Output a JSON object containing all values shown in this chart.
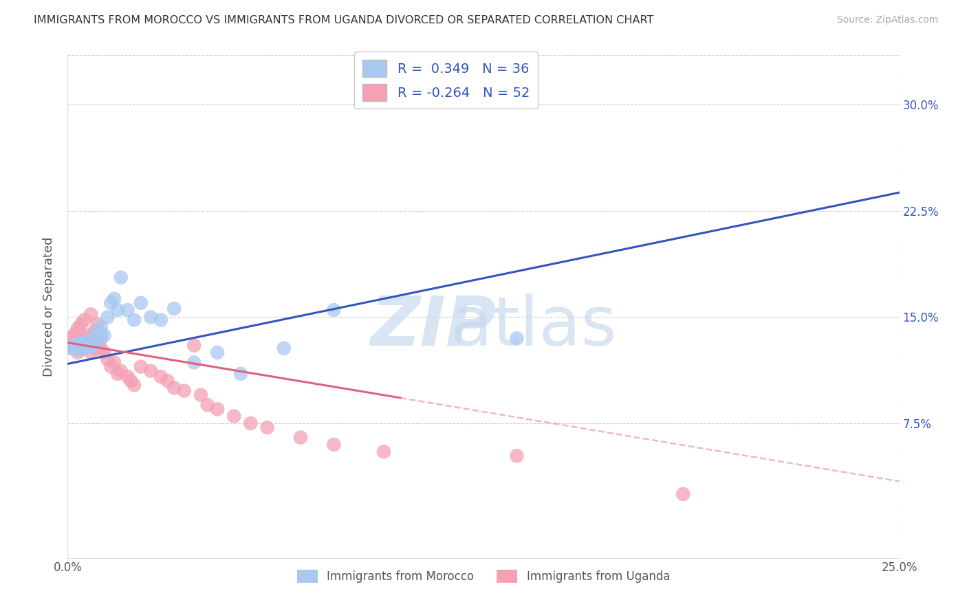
{
  "title": "IMMIGRANTS FROM MOROCCO VS IMMIGRANTS FROM UGANDA DIVORCED OR SEPARATED CORRELATION CHART",
  "source": "Source: ZipAtlas.com",
  "ylabel": "Divorced or Separated",
  "y_ticks": [
    0.075,
    0.15,
    0.225,
    0.3
  ],
  "y_tick_labels": [
    "7.5%",
    "15.0%",
    "22.5%",
    "30.0%"
  ],
  "xlim": [
    0.0,
    0.25
  ],
  "ylim": [
    -0.02,
    0.335
  ],
  "morocco_R": 0.349,
  "morocco_N": 36,
  "uganda_R": -0.264,
  "uganda_N": 52,
  "morocco_color": "#a8c8f0",
  "uganda_color": "#f4a0b5",
  "morocco_line_color": "#3355bb",
  "uganda_line_color": "#e06080",
  "legend_morocco": "Immigrants from Morocco",
  "legend_uganda": "Immigrants from Uganda",
  "morocco_line_x0": 0.0,
  "morocco_line_y0": 0.117,
  "morocco_line_x1": 0.25,
  "morocco_line_y1": 0.238,
  "uganda_line_x0": 0.0,
  "uganda_line_y0": 0.132,
  "uganda_line_x1_solid": 0.1,
  "uganda_line_y1_solid": 0.093,
  "uganda_line_x1_dash": 0.25,
  "uganda_line_y1_dash": 0.034,
  "morocco_scatter_x": [
    0.001,
    0.002,
    0.003,
    0.003,
    0.004,
    0.004,
    0.005,
    0.005,
    0.006,
    0.006,
    0.007,
    0.007,
    0.008,
    0.008,
    0.009,
    0.009,
    0.01,
    0.01,
    0.011,
    0.012,
    0.013,
    0.014,
    0.015,
    0.016,
    0.018,
    0.02,
    0.022,
    0.025,
    0.028,
    0.032,
    0.038,
    0.045,
    0.052,
    0.065,
    0.08,
    0.135
  ],
  "morocco_scatter_y": [
    0.128,
    0.13,
    0.127,
    0.131,
    0.129,
    0.132,
    0.128,
    0.131,
    0.13,
    0.133,
    0.132,
    0.129,
    0.135,
    0.131,
    0.14,
    0.134,
    0.138,
    0.143,
    0.137,
    0.15,
    0.16,
    0.163,
    0.155,
    0.178,
    0.155,
    0.148,
    0.16,
    0.15,
    0.148,
    0.156,
    0.118,
    0.125,
    0.11,
    0.128,
    0.155,
    0.135
  ],
  "uganda_scatter_x": [
    0.001,
    0.001,
    0.002,
    0.002,
    0.002,
    0.003,
    0.003,
    0.003,
    0.004,
    0.004,
    0.004,
    0.005,
    0.005,
    0.005,
    0.006,
    0.006,
    0.007,
    0.007,
    0.007,
    0.008,
    0.008,
    0.009,
    0.009,
    0.01,
    0.01,
    0.011,
    0.012,
    0.013,
    0.014,
    0.015,
    0.016,
    0.018,
    0.019,
    0.02,
    0.022,
    0.025,
    0.028,
    0.03,
    0.032,
    0.035,
    0.038,
    0.04,
    0.042,
    0.045,
    0.05,
    0.055,
    0.06,
    0.07,
    0.08,
    0.095,
    0.135,
    0.185
  ],
  "uganda_scatter_y": [
    0.13,
    0.135,
    0.128,
    0.132,
    0.138,
    0.125,
    0.13,
    0.142,
    0.127,
    0.133,
    0.145,
    0.128,
    0.135,
    0.148,
    0.13,
    0.137,
    0.125,
    0.132,
    0.152,
    0.128,
    0.14,
    0.13,
    0.145,
    0.128,
    0.135,
    0.125,
    0.12,
    0.115,
    0.118,
    0.11,
    0.112,
    0.108,
    0.105,
    0.102,
    0.115,
    0.112,
    0.108,
    0.105,
    0.1,
    0.098,
    0.13,
    0.095,
    0.088,
    0.085,
    0.08,
    0.075,
    0.072,
    0.065,
    0.06,
    0.055,
    0.052,
    0.025
  ]
}
